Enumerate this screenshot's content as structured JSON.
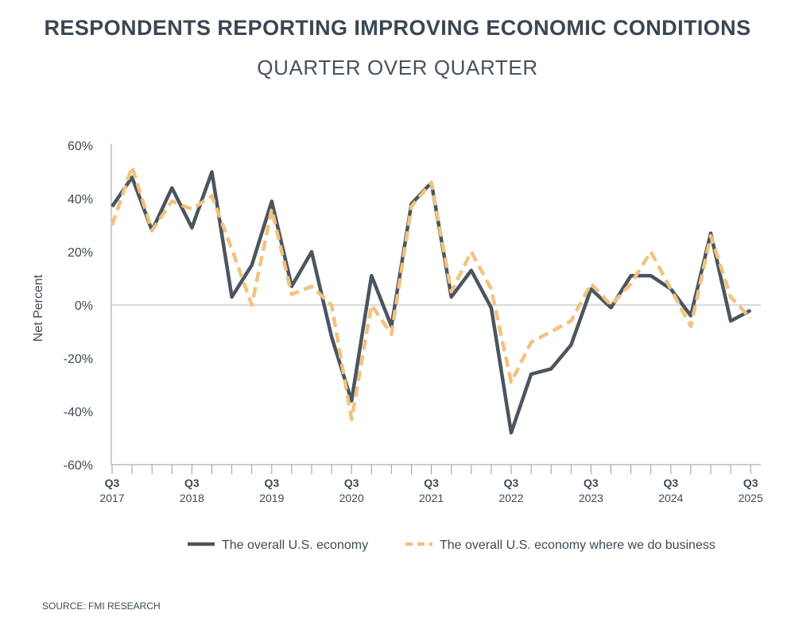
{
  "header": {
    "title": "RESPONDENTS REPORTING IMPROVING ECONOMIC CONDITIONS",
    "subtitle": "QUARTER OVER QUARTER"
  },
  "source": "SOURCE: FMI RESEARCH",
  "colors": {
    "series1": "#4a5560",
    "series2": "#f2c27e",
    "axis": "#9a9a9a",
    "text": "#3d4a57"
  },
  "chart_data": {
    "type": "line",
    "ylabel": "Net Percent",
    "xlabel": "",
    "ylim": [
      -60,
      60
    ],
    "yticks": [
      60,
      40,
      20,
      0,
      -20,
      -40,
      -60
    ],
    "ytick_labels": [
      "60%",
      "40%",
      "20%",
      "0%",
      "-20%",
      "-40%",
      "-60%"
    ],
    "x": [
      "Q3 2017",
      "Q4 2017",
      "Q1 2018",
      "Q2 2018",
      "Q3 2018",
      "Q4 2018",
      "Q1 2019",
      "Q2 2019",
      "Q3 2019",
      "Q4 2019",
      "Q1 2020",
      "Q2 2020",
      "Q3 2020",
      "Q4 2020",
      "Q1 2021",
      "Q2 2021",
      "Q3 2021",
      "Q4 2021",
      "Q1 2022",
      "Q2 2022",
      "Q3 2022",
      "Q4 2022",
      "Q1 2023",
      "Q2 2023",
      "Q3 2023",
      "Q4 2023",
      "Q1 2024",
      "Q2 2024",
      "Q3 2024",
      "Q4 2024",
      "Q1 2025",
      "Q2 2025",
      "Q3 2025"
    ],
    "x_tick_labels": [
      {
        "quarter": "Q3",
        "year": "2017",
        "index": 0
      },
      {
        "quarter": "Q3",
        "year": "2018",
        "index": 4
      },
      {
        "quarter": "Q3",
        "year": "2019",
        "index": 8
      },
      {
        "quarter": "Q3",
        "year": "2020",
        "index": 12
      },
      {
        "quarter": "Q3",
        "year": "2021",
        "index": 16
      },
      {
        "quarter": "Q3",
        "year": "2022",
        "index": 20
      },
      {
        "quarter": "Q3",
        "year": "2023",
        "index": 24
      },
      {
        "quarter": "Q3",
        "year": "2024",
        "index": 28
      },
      {
        "quarter": "Q3",
        "year": "2025",
        "index": 32
      }
    ],
    "series": [
      {
        "name": "The overall U.S. economy",
        "style": "solid",
        "values": [
          37,
          48,
          28,
          44,
          29,
          50,
          3,
          15,
          39,
          7,
          20,
          -12,
          -36,
          11,
          -8,
          38,
          46,
          3,
          13,
          -1,
          -48,
          -26,
          -24,
          -15,
          6,
          -1,
          11,
          11,
          6,
          -4,
          27,
          -6,
          -2
        ]
      },
      {
        "name": "The overall U.S. economy where we do business",
        "style": "dashed",
        "values": [
          30,
          52,
          28,
          39,
          36,
          41,
          21,
          0,
          36,
          4,
          7,
          0,
          -43,
          0,
          -11,
          37,
          46,
          5,
          20,
          6,
          -29,
          -14,
          -10,
          -6,
          8,
          0,
          8,
          20,
          6,
          -8,
          26,
          3,
          -5
        ]
      }
    ],
    "legend": "bottom",
    "grid": false
  }
}
